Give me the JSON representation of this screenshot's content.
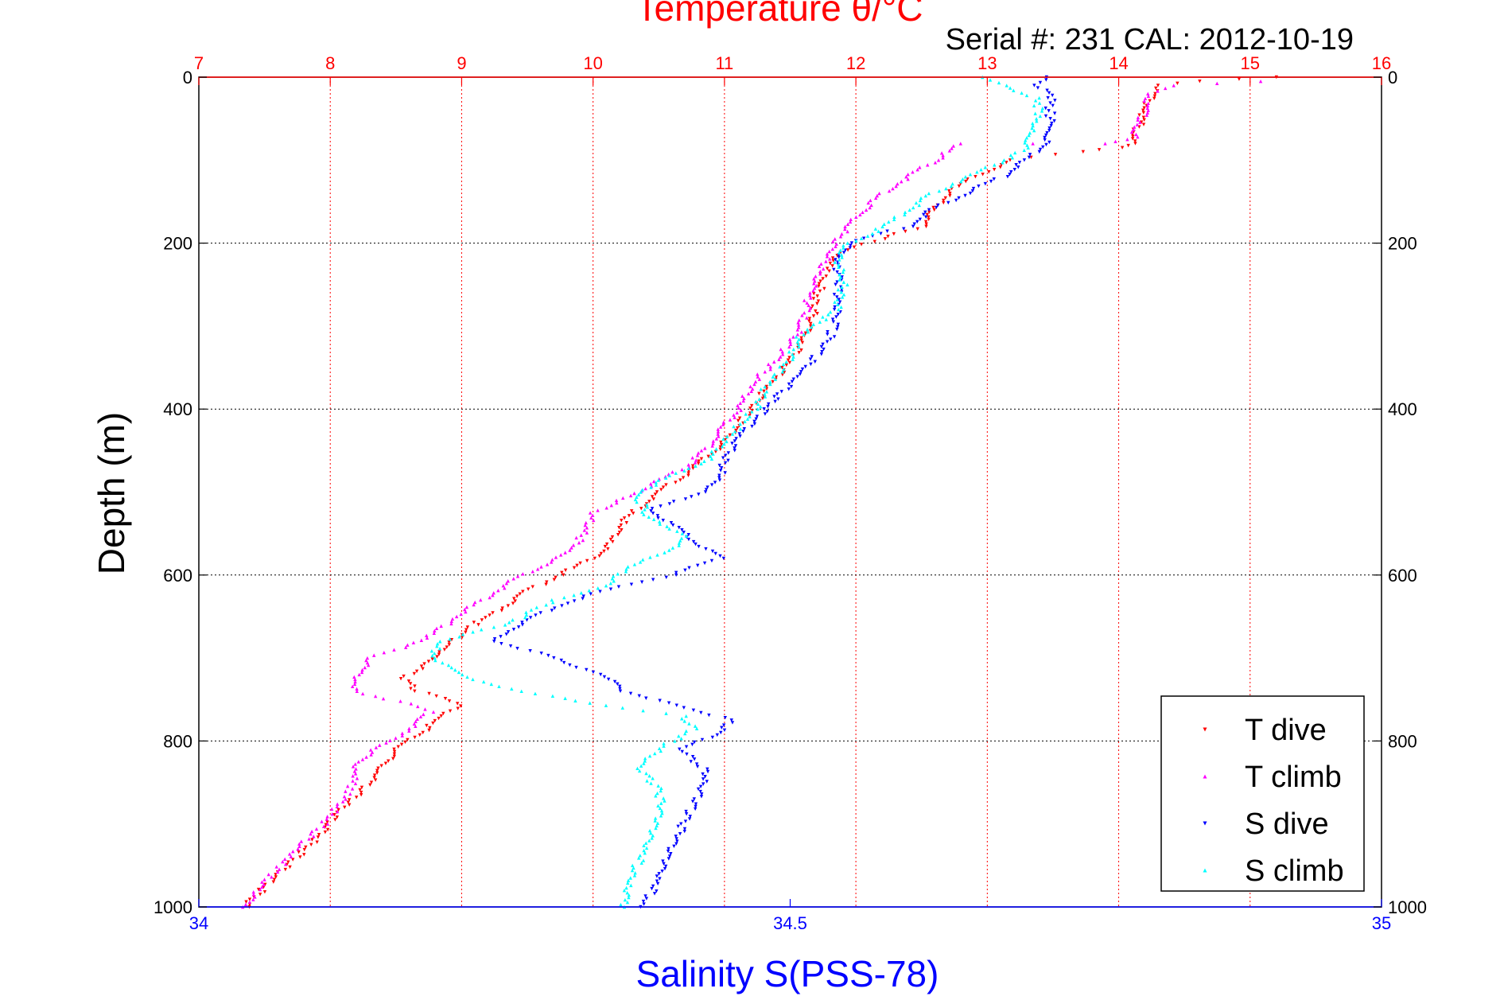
{
  "chart_data": {
    "type": "scatter",
    "title": "Temperature θ/°C",
    "subtitle": "Serial #: 231  CAL: 2012-10-19",
    "ylabel": "Depth (m)",
    "xlabel_bottom": "Salinity S(PSS-78)",
    "xlabel_top": "Temperature θ/°C",
    "ylim": [
      0,
      1000
    ],
    "y_reversed": true,
    "y_ticks": [
      0,
      200,
      400,
      600,
      800,
      1000
    ],
    "y_tick_labels": [
      "0",
      "200",
      "400",
      "600",
      "800",
      "1000"
    ],
    "x_top_lim": [
      7,
      16
    ],
    "x_top_ticks": [
      7,
      8,
      9,
      10,
      11,
      12,
      13,
      14,
      15,
      16
    ],
    "x_top_tick_labels": [
      "7",
      "8",
      "9",
      "10",
      "11",
      "12",
      "13",
      "14",
      "15",
      "16"
    ],
    "x_bottom_lim": [
      34,
      35
    ],
    "x_bottom_ticks": [
      34,
      34.5,
      35
    ],
    "x_bottom_tick_labels": [
      "34",
      "34.5",
      "35"
    ],
    "grid": true,
    "legend_position": "bottom-right",
    "colors": {
      "temperature_axis": "#ff0000",
      "salinity_axis": "#0000ff",
      "grid_vertical": "#ff0000",
      "grid_horizontal": "#000000"
    },
    "series": [
      {
        "name": "T dive",
        "axis": "temperature",
        "marker": "triangle-down",
        "color": "#ff0000",
        "points": [
          [
            15.2,
            0
          ],
          [
            14.6,
            5
          ],
          [
            14.3,
            10
          ],
          [
            14.25,
            20
          ],
          [
            14.2,
            40
          ],
          [
            14.15,
            60
          ],
          [
            14.1,
            80
          ],
          [
            14.05,
            85
          ],
          [
            13.7,
            90
          ],
          [
            13.2,
            100
          ],
          [
            12.9,
            120
          ],
          [
            12.7,
            140
          ],
          [
            12.6,
            160
          ],
          [
            12.5,
            180
          ],
          [
            12.2,
            195
          ],
          [
            12.0,
            205
          ],
          [
            11.85,
            215
          ],
          [
            11.75,
            240
          ],
          [
            11.7,
            270
          ],
          [
            11.65,
            300
          ],
          [
            11.6,
            320
          ],
          [
            11.45,
            350
          ],
          [
            11.35,
            370
          ],
          [
            11.25,
            390
          ],
          [
            11.1,
            420
          ],
          [
            11.0,
            440
          ],
          [
            10.85,
            460
          ],
          [
            10.7,
            480
          ],
          [
            10.5,
            500
          ],
          [
            10.35,
            520
          ],
          [
            10.2,
            540
          ],
          [
            10.15,
            560
          ],
          [
            10.0,
            580
          ],
          [
            9.75,
            600
          ],
          [
            9.5,
            620
          ],
          [
            9.3,
            640
          ],
          [
            9.1,
            660
          ],
          [
            8.85,
            690
          ],
          [
            8.7,
            710
          ],
          [
            8.55,
            725
          ],
          [
            8.65,
            740
          ],
          [
            9.0,
            755
          ],
          [
            8.85,
            770
          ],
          [
            8.7,
            790
          ],
          [
            8.5,
            810
          ],
          [
            8.4,
            830
          ],
          [
            8.3,
            850
          ],
          [
            8.1,
            880
          ],
          [
            7.95,
            910
          ],
          [
            7.75,
            940
          ],
          [
            7.55,
            970
          ],
          [
            7.35,
            1000
          ]
        ]
      },
      {
        "name": "T climb",
        "axis": "temperature",
        "marker": "triangle-up",
        "color": "#ff00ff",
        "points": [
          [
            15.1,
            5
          ],
          [
            14.4,
            10
          ],
          [
            14.25,
            20
          ],
          [
            14.2,
            40
          ],
          [
            14.15,
            60
          ],
          [
            14.1,
            75
          ],
          [
            13.9,
            80
          ],
          [
            12.8,
            80
          ],
          [
            12.6,
            100
          ],
          [
            12.4,
            120
          ],
          [
            12.2,
            140
          ],
          [
            12.05,
            160
          ],
          [
            11.95,
            180
          ],
          [
            11.85,
            195
          ],
          [
            11.8,
            210
          ],
          [
            11.7,
            240
          ],
          [
            11.65,
            260
          ],
          [
            11.6,
            290
          ],
          [
            11.55,
            310
          ],
          [
            11.4,
            340
          ],
          [
            11.2,
            370
          ],
          [
            11.15,
            390
          ],
          [
            11.05,
            410
          ],
          [
            10.95,
            430
          ],
          [
            10.85,
            450
          ],
          [
            10.7,
            470
          ],
          [
            10.45,
            490
          ],
          [
            10.2,
            510
          ],
          [
            10.0,
            525
          ],
          [
            9.95,
            540
          ],
          [
            9.85,
            570
          ],
          [
            9.6,
            590
          ],
          [
            9.35,
            610
          ],
          [
            9.15,
            630
          ],
          [
            8.95,
            650
          ],
          [
            8.8,
            670
          ],
          [
            8.5,
            690
          ],
          [
            8.3,
            700
          ],
          [
            8.2,
            720
          ],
          [
            8.2,
            740
          ],
          [
            8.6,
            755
          ],
          [
            8.75,
            765
          ],
          [
            8.6,
            785
          ],
          [
            8.4,
            805
          ],
          [
            8.2,
            825
          ],
          [
            8.2,
            845
          ],
          [
            8.1,
            870
          ],
          [
            7.95,
            900
          ],
          [
            7.75,
            930
          ],
          [
            7.5,
            970
          ],
          [
            7.35,
            1000
          ]
        ]
      },
      {
        "name": "S dive",
        "axis": "salinity",
        "marker": "triangle-down",
        "color": "#0000ff",
        "points": [
          [
            34.72,
            0
          ],
          [
            34.71,
            10
          ],
          [
            34.72,
            25
          ],
          [
            34.72,
            50
          ],
          [
            34.72,
            70
          ],
          [
            34.71,
            90
          ],
          [
            34.7,
            100
          ],
          [
            34.68,
            120
          ],
          [
            34.65,
            140
          ],
          [
            34.62,
            160
          ],
          [
            34.6,
            180
          ],
          [
            34.55,
            200
          ],
          [
            34.54,
            220
          ],
          [
            34.54,
            250
          ],
          [
            34.54,
            280
          ],
          [
            34.535,
            310
          ],
          [
            34.52,
            340
          ],
          [
            34.5,
            370
          ],
          [
            34.48,
            400
          ],
          [
            34.46,
            430
          ],
          [
            34.45,
            450
          ],
          [
            34.44,
            480
          ],
          [
            34.43,
            500
          ],
          [
            34.38,
            520
          ],
          [
            34.4,
            540
          ],
          [
            34.42,
            560
          ],
          [
            34.44,
            580
          ],
          [
            34.4,
            600
          ],
          [
            34.34,
            620
          ],
          [
            34.3,
            640
          ],
          [
            34.27,
            660
          ],
          [
            34.25,
            680
          ],
          [
            34.3,
            700
          ],
          [
            34.34,
            720
          ],
          [
            34.36,
            740
          ],
          [
            34.41,
            760
          ],
          [
            34.45,
            775
          ],
          [
            34.44,
            790
          ],
          [
            34.41,
            810
          ],
          [
            34.43,
            840
          ],
          [
            34.42,
            870
          ],
          [
            34.41,
            900
          ],
          [
            34.4,
            930
          ],
          [
            34.39,
            960
          ],
          [
            34.38,
            990
          ],
          [
            34.37,
            1000
          ]
        ]
      },
      {
        "name": "S climb",
        "axis": "salinity",
        "marker": "triangle-up",
        "color": "#00ffff",
        "points": [
          [
            34.66,
            0
          ],
          [
            34.68,
            10
          ],
          [
            34.71,
            25
          ],
          [
            34.71,
            50
          ],
          [
            34.7,
            70
          ],
          [
            34.7,
            85
          ],
          [
            34.68,
            100
          ],
          [
            34.65,
            120
          ],
          [
            34.62,
            140
          ],
          [
            34.6,
            160
          ],
          [
            34.58,
            180
          ],
          [
            34.55,
            200
          ],
          [
            34.54,
            220
          ],
          [
            34.545,
            250
          ],
          [
            34.54,
            280
          ],
          [
            34.51,
            310
          ],
          [
            34.5,
            340
          ],
          [
            34.48,
            370
          ],
          [
            34.47,
            400
          ],
          [
            34.45,
            430
          ],
          [
            34.43,
            460
          ],
          [
            34.4,
            480
          ],
          [
            34.37,
            500
          ],
          [
            34.38,
            530
          ],
          [
            34.41,
            550
          ],
          [
            34.4,
            570
          ],
          [
            34.36,
            590
          ],
          [
            34.35,
            610
          ],
          [
            34.3,
            630
          ],
          [
            34.26,
            660
          ],
          [
            34.2,
            680
          ],
          [
            34.2,
            700
          ],
          [
            34.22,
            720
          ],
          [
            34.27,
            740
          ],
          [
            34.36,
            760
          ],
          [
            34.41,
            770
          ],
          [
            34.42,
            785
          ],
          [
            34.4,
            800
          ],
          [
            34.37,
            830
          ],
          [
            34.39,
            860
          ],
          [
            34.39,
            890
          ],
          [
            34.38,
            920
          ],
          [
            34.37,
            950
          ],
          [
            34.36,
            980
          ],
          [
            34.36,
            1000
          ]
        ]
      }
    ]
  }
}
